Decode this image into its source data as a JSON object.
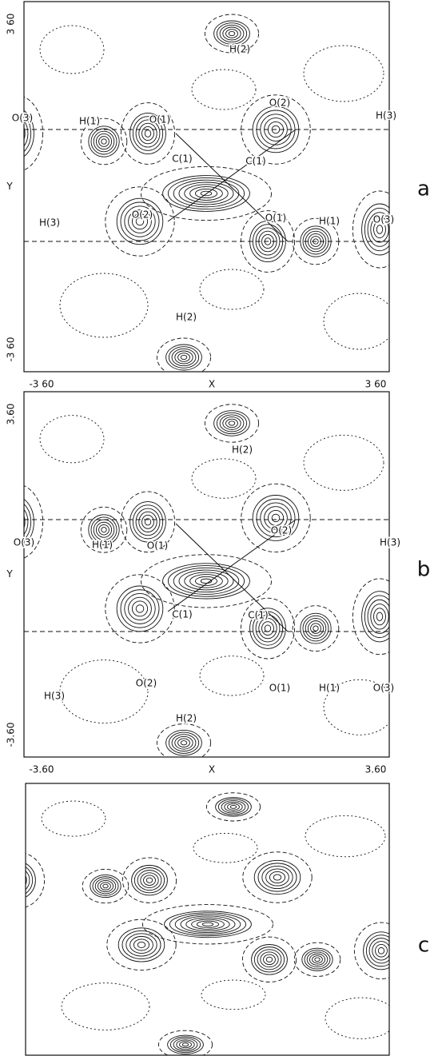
{
  "figure": {
    "panels": [
      {
        "letter": "a",
        "y_axis_label": "Y",
        "x_axis_label": "X",
        "y_max_label": "3 60",
        "y_min_label": "-3 60",
        "x_min_label": "-3 60",
        "x_max_label": "3 60",
        "atoms": [
          "O(3)",
          "H(1)",
          "O(1)",
          "O(2)",
          "H(3)",
          "H(2)",
          "C(1)",
          "C(1)",
          "O(2)",
          "O(1)",
          "H(1)",
          "O(3)",
          "H(3)",
          "H(2)"
        ]
      },
      {
        "letter": "b",
        "y_axis_label": "Y",
        "x_axis_label": "X",
        "y_max_label": "3.60",
        "y_min_label": "-3.60",
        "x_min_label": "-3.60",
        "x_max_label": "3.60",
        "atoms": [
          "H(2)",
          "O(3)",
          "H(1)",
          "O(1)",
          "O(2)",
          "H(3)",
          "C(1)",
          "C(1)",
          "H(3)",
          "O(2)",
          "O(1)",
          "H(1)",
          "O(3)",
          "H(2)"
        ]
      },
      {
        "letter": "c"
      }
    ]
  }
}
